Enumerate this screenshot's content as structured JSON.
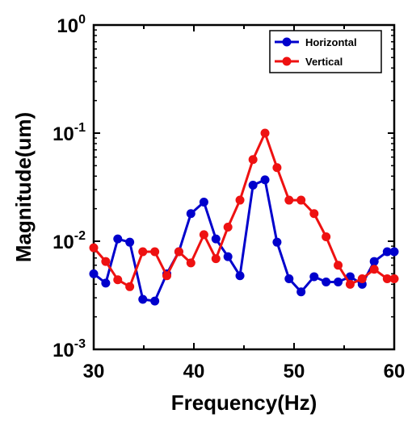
{
  "chart_data": {
    "type": "line",
    "title": "",
    "xlabel": "Frequency(Hz)",
    "ylabel": "Magnitude(um)",
    "xlim": [
      30,
      60
    ],
    "ylim": [
      0.001,
      1
    ],
    "yscale": "log",
    "x_ticks": [
      30,
      40,
      50,
      60
    ],
    "x_tick_labels": [
      "30",
      "40",
      "50",
      "60"
    ],
    "y_ticks": [
      0.001,
      0.01,
      0.1,
      1
    ],
    "y_tick_labels": [
      {
        "base": "10",
        "exp": "-3"
      },
      {
        "base": "10",
        "exp": "-2"
      },
      {
        "base": "10",
        "exp": "-1"
      },
      {
        "base": "10",
        "exp": "0"
      }
    ],
    "grid": false,
    "legend_position": "top-right",
    "series": [
      {
        "name": "Horizontal",
        "color": "#0000cc",
        "x": [
          30,
          31.2,
          32.4,
          33.6,
          34.9,
          36.1,
          37.3,
          38.5,
          39.7,
          41.0,
          42.2,
          43.4,
          44.6,
          45.9,
          47.1,
          48.3,
          49.5,
          50.7,
          52.0,
          53.2,
          54.4,
          55.6,
          56.8,
          58.0,
          59.3,
          60
        ],
        "y": [
          0.005,
          0.0041,
          0.0105,
          0.0098,
          0.0029,
          0.0028,
          0.005,
          0.008,
          0.018,
          0.023,
          0.0105,
          0.0072,
          0.0048,
          0.033,
          0.037,
          0.0098,
          0.0045,
          0.0034,
          0.0047,
          0.0042,
          0.0042,
          0.0047,
          0.004,
          0.0065,
          0.008,
          0.008
        ]
      },
      {
        "name": "Vertical",
        "color": "#ee1111",
        "x": [
          30,
          31.2,
          32.4,
          33.6,
          34.9,
          36.1,
          37.3,
          38.5,
          39.7,
          41.0,
          42.2,
          43.4,
          44.6,
          45.9,
          47.1,
          48.3,
          49.5,
          50.7,
          52.0,
          53.2,
          54.4,
          55.6,
          56.8,
          58.0,
          59.3,
          60
        ],
        "y": [
          0.0087,
          0.0065,
          0.0044,
          0.0038,
          0.008,
          0.008,
          0.0048,
          0.008,
          0.0063,
          0.0115,
          0.0069,
          0.0135,
          0.024,
          0.057,
          0.1,
          0.048,
          0.024,
          0.024,
          0.018,
          0.011,
          0.006,
          0.004,
          0.0045,
          0.0055,
          0.0045,
          0.0045
        ]
      }
    ]
  }
}
